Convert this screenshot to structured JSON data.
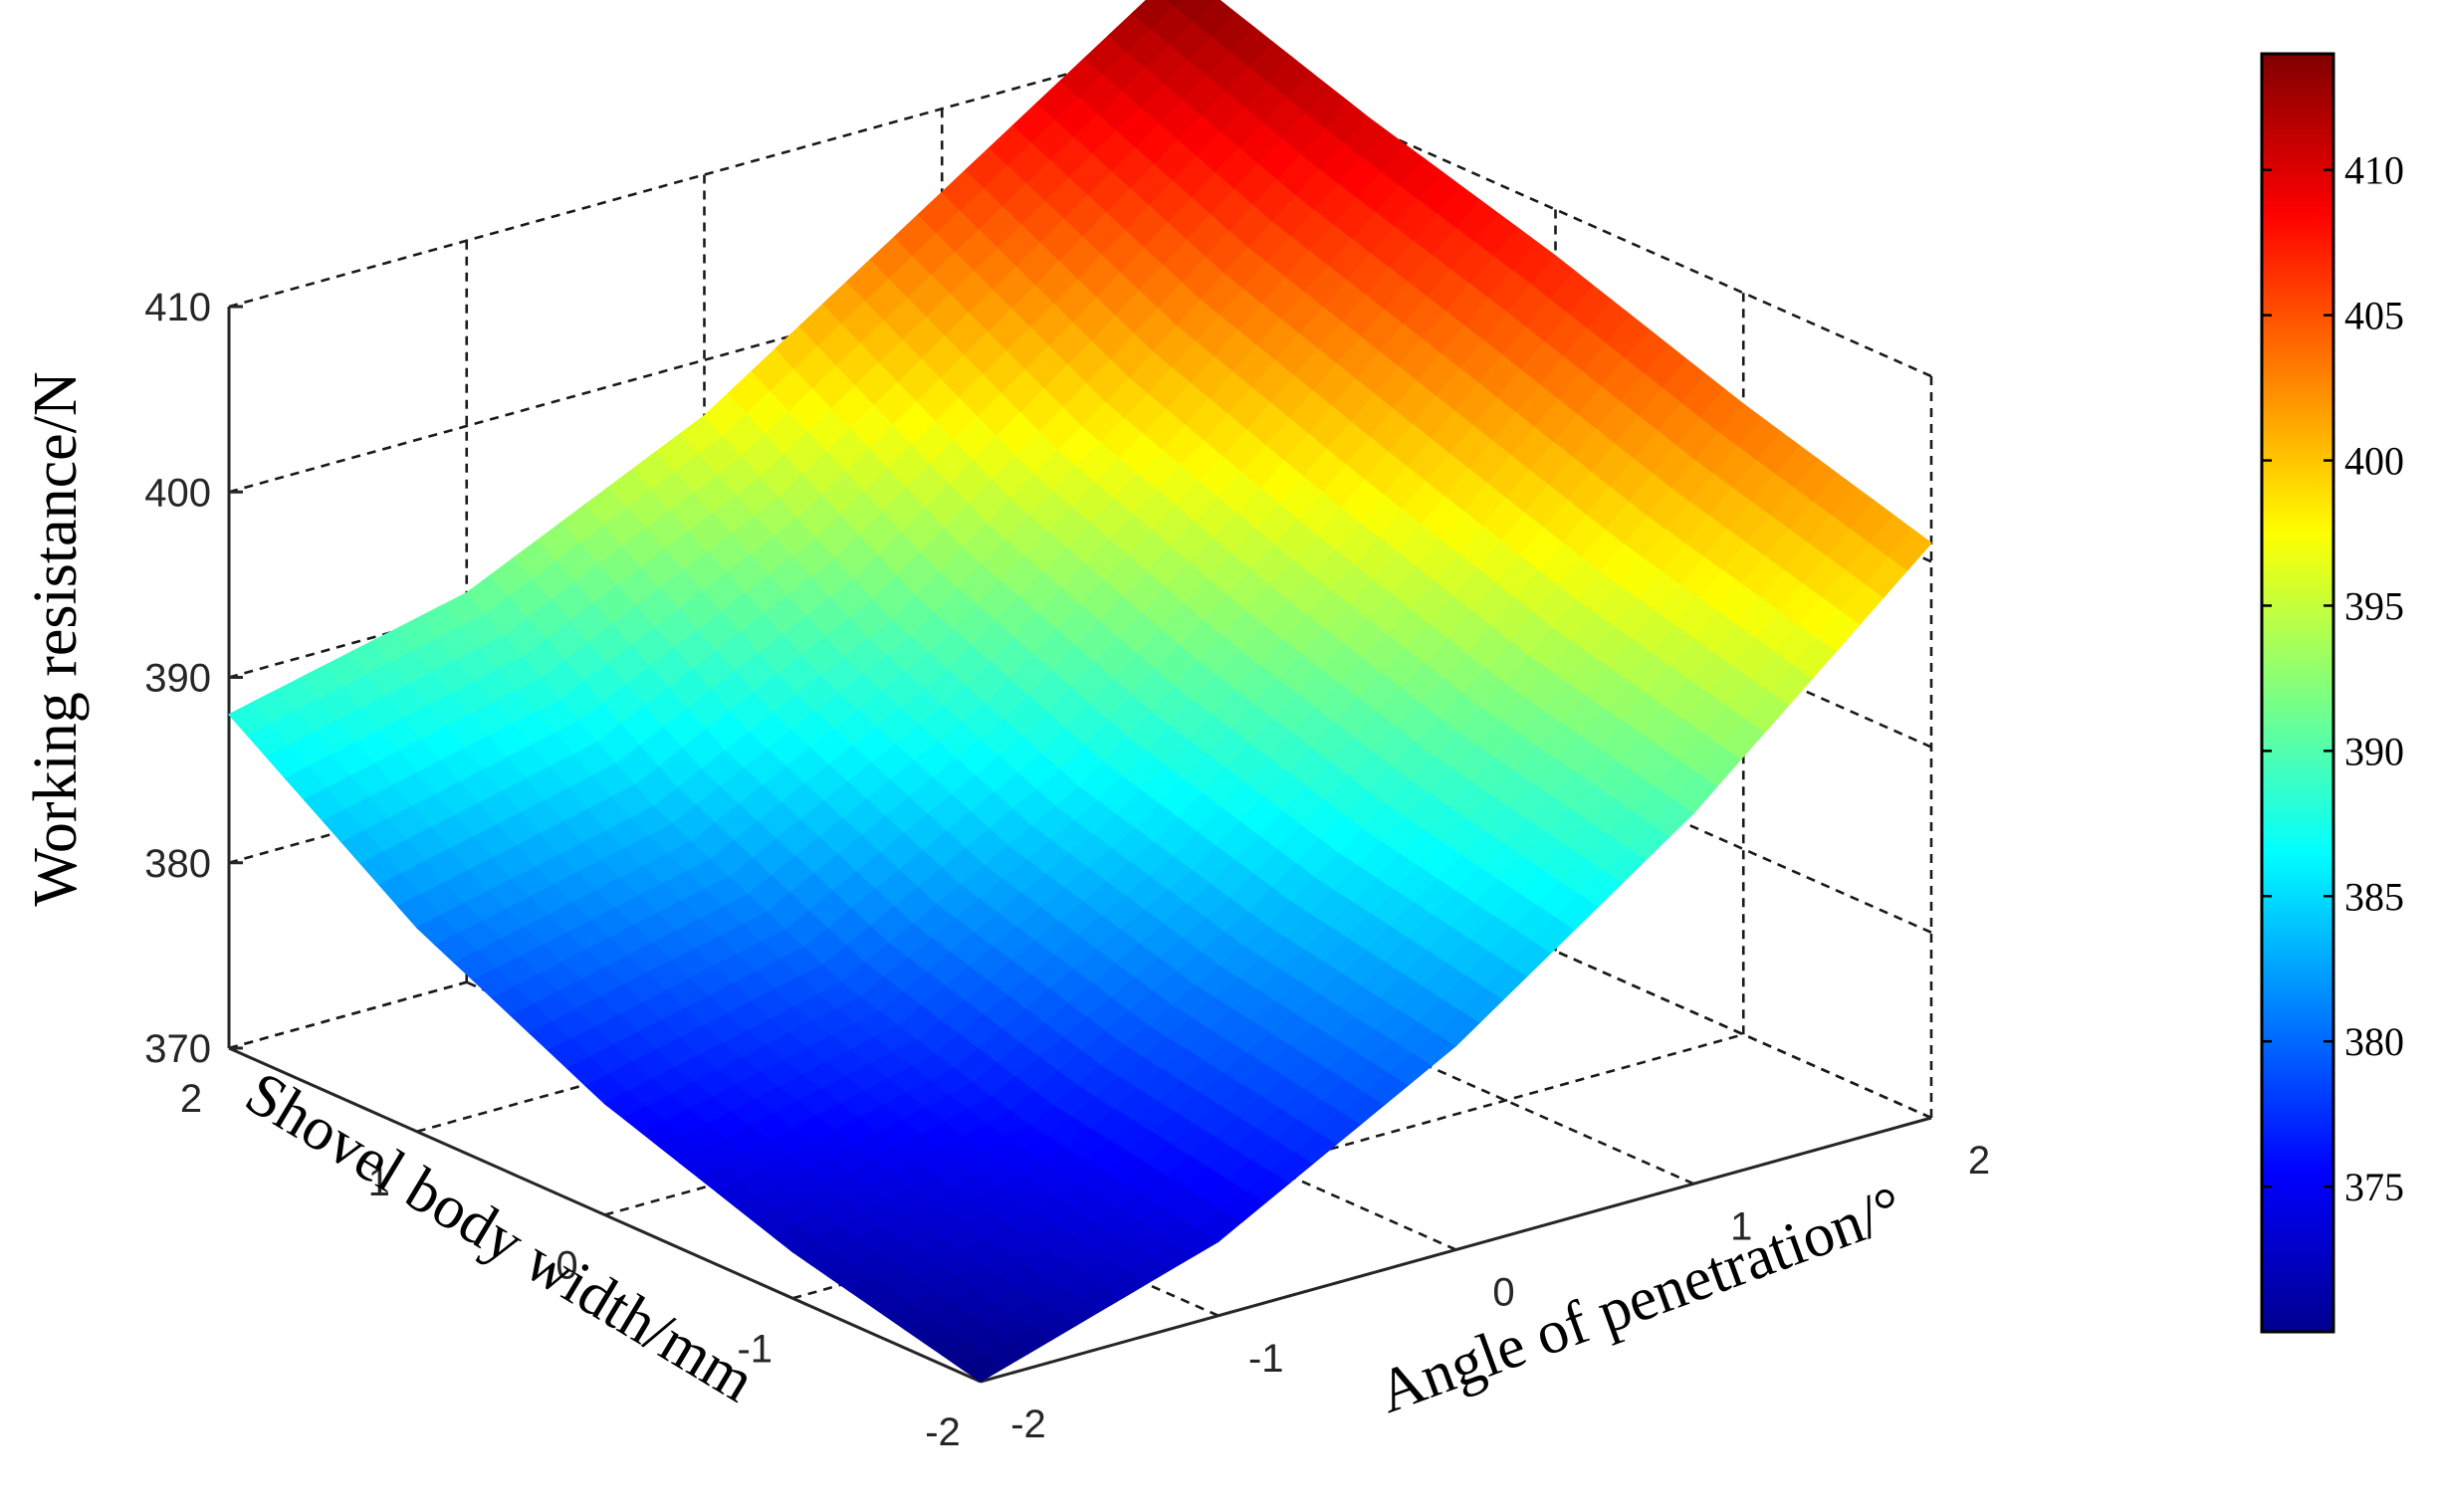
{
  "chart_data": {
    "type": "surface3d",
    "title": "",
    "xlabel": "Angle of penetration/°",
    "ylabel": "Shovel body width/mm",
    "zlabel": "Working resistance/N",
    "x_ticks": [
      "-2",
      "-1",
      "0",
      "1",
      "2"
    ],
    "y_ticks": [
      "-2",
      "-1",
      "0",
      "1",
      "2"
    ],
    "z_ticks": [
      "370",
      "380",
      "390",
      "400",
      "410"
    ],
    "xlim": [
      -2,
      2
    ],
    "ylim": [
      -2,
      2
    ],
    "zlim": [
      370,
      410
    ],
    "x": [
      -2,
      -1,
      0,
      1,
      2
    ],
    "y": [
      -2,
      -1,
      0,
      1,
      2
    ],
    "z": [
      [
        370.0,
        374.0,
        381.0,
        390.0,
        401.0
      ],
      [
        372.5,
        375.8,
        383.0,
        392.5,
        404.0
      ],
      [
        376.0,
        379.0,
        386.0,
        396.0,
        407.5
      ],
      [
        381.0,
        384.0,
        390.5,
        400.0,
        410.5
      ],
      [
        388.0,
        391.0,
        397.0,
        405.5,
        414.0
      ]
    ],
    "colormap": "jet",
    "colorbar": {
      "range": [
        370,
        414
      ],
      "ticks": [
        "375",
        "380",
        "385",
        "390",
        "395",
        "400",
        "405",
        "410"
      ]
    },
    "grid": true
  }
}
